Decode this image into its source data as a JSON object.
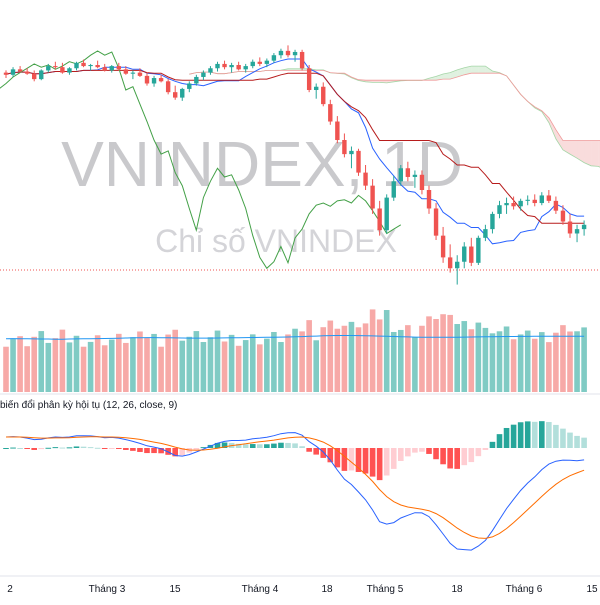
{
  "watermark": {
    "symbol": "VNINDEX, 1D",
    "name": "Chỉ số VNINDEX"
  },
  "macd": {
    "label": "biến đổi phân kỳ hội tụ (12, 26, close, 9)"
  },
  "colors": {
    "up": "#26a69a",
    "down": "#ef5350",
    "up_vol": "#80cbc4",
    "down_vol": "#f7a9a7",
    "conversion": "#2962ff",
    "base": "#b71c1c",
    "lagging": "#43a047",
    "cloud_up": "#a5d6a7",
    "cloud_down": "#ef9a9a",
    "macd_line": "#2962ff",
    "signal_line": "#ff6d00",
    "hist_up_strong": "#26a69a",
    "hist_up_weak": "#b2dfdb",
    "hist_down_strong": "#ff5252",
    "hist_down_weak": "#ffcdd2",
    "volume_ma": "#2196f3",
    "grid": "#f0f3fa"
  },
  "chart_data": {
    "type": "candlestick",
    "title": "VNINDEX, 1D",
    "subtitle": "Chỉ số VNINDEX",
    "x_tick_labels": [
      "2",
      "Tháng 3",
      "15",
      "Tháng 4",
      "18",
      "Tháng 5",
      "18",
      "Tháng 6",
      "15"
    ],
    "grid": false,
    "candles": [
      [
        1170,
        1172,
        1165,
        1168
      ],
      [
        1168,
        1175,
        1166,
        1173
      ],
      [
        1173,
        1176,
        1170,
        1171
      ],
      [
        1171,
        1174,
        1168,
        1169
      ],
      [
        1169,
        1172,
        1162,
        1164
      ],
      [
        1164,
        1173,
        1163,
        1172
      ],
      [
        1172,
        1178,
        1170,
        1176
      ],
      [
        1176,
        1180,
        1173,
        1175
      ],
      [
        1175,
        1179,
        1169,
        1170
      ],
      [
        1170,
        1175,
        1168,
        1174
      ],
      [
        1174,
        1180,
        1172,
        1179
      ],
      [
        1179,
        1182,
        1175,
        1176
      ],
      [
        1176,
        1178,
        1172,
        1177
      ],
      [
        1177,
        1181,
        1174,
        1175
      ],
      [
        1175,
        1178,
        1171,
        1172
      ],
      [
        1172,
        1177,
        1170,
        1176
      ],
      [
        1176,
        1179,
        1172,
        1173
      ],
      [
        1173,
        1176,
        1168,
        1169
      ],
      [
        1169,
        1172,
        1164,
        1170
      ],
      [
        1170,
        1174,
        1166,
        1167
      ],
      [
        1167,
        1170,
        1158,
        1160
      ],
      [
        1160,
        1167,
        1157,
        1165
      ],
      [
        1165,
        1168,
        1161,
        1162
      ],
      [
        1162,
        1164,
        1150,
        1152
      ],
      [
        1152,
        1158,
        1145,
        1147
      ],
      [
        1147,
        1156,
        1144,
        1155
      ],
      [
        1155,
        1162,
        1152,
        1160
      ],
      [
        1160,
        1168,
        1158,
        1166
      ],
      [
        1166,
        1172,
        1163,
        1170
      ],
      [
        1170,
        1176,
        1168,
        1174
      ],
      [
        1174,
        1180,
        1171,
        1178
      ],
      [
        1178,
        1181,
        1173,
        1175
      ],
      [
        1175,
        1179,
        1170,
        1177
      ],
      [
        1177,
        1180,
        1172,
        1173
      ],
      [
        1173,
        1178,
        1170,
        1176
      ],
      [
        1176,
        1182,
        1174,
        1180
      ],
      [
        1180,
        1184,
        1176,
        1178
      ],
      [
        1178,
        1183,
        1175,
        1181
      ],
      [
        1181,
        1188,
        1179,
        1186
      ],
      [
        1186,
        1192,
        1183,
        1190
      ],
      [
        1190,
        1195,
        1184,
        1186
      ],
      [
        1186,
        1191,
        1180,
        1189
      ],
      [
        1189,
        1191,
        1172,
        1174
      ],
      [
        1174,
        1177,
        1152,
        1154
      ],
      [
        1154,
        1160,
        1146,
        1157
      ],
      [
        1157,
        1161,
        1139,
        1141
      ],
      [
        1141,
        1145,
        1122,
        1125
      ],
      [
        1125,
        1130,
        1105,
        1108
      ],
      [
        1108,
        1114,
        1092,
        1095
      ],
      [
        1095,
        1102,
        1082,
        1098
      ],
      [
        1098,
        1100,
        1075,
        1078
      ],
      [
        1078,
        1085,
        1062,
        1066
      ],
      [
        1066,
        1072,
        1040,
        1045
      ],
      [
        1045,
        1052,
        1020,
        1025
      ],
      [
        1025,
        1058,
        1022,
        1055
      ],
      [
        1055,
        1075,
        1052,
        1070
      ],
      [
        1070,
        1085,
        1066,
        1082
      ],
      [
        1082,
        1088,
        1070,
        1074
      ],
      [
        1074,
        1080,
        1064,
        1076
      ],
      [
        1076,
        1080,
        1058,
        1062
      ],
      [
        1062,
        1066,
        1040,
        1045
      ],
      [
        1045,
        1050,
        1016,
        1020
      ],
      [
        1020,
        1028,
        995,
        1000
      ],
      [
        1000,
        1012,
        986,
        990
      ],
      [
        990,
        1002,
        975,
        996
      ],
      [
        996,
        1014,
        990,
        1010
      ],
      [
        1010,
        1018,
        992,
        995
      ],
      [
        995,
        1020,
        993,
        1018
      ],
      [
        1018,
        1030,
        1015,
        1026
      ],
      [
        1026,
        1042,
        1022,
        1040
      ],
      [
        1040,
        1052,
        1036,
        1048
      ],
      [
        1048,
        1055,
        1040,
        1050
      ],
      [
        1050,
        1056,
        1044,
        1047
      ],
      [
        1047,
        1054,
        1043,
        1052
      ],
      [
        1052,
        1057,
        1048,
        1053
      ],
      [
        1053,
        1058,
        1047,
        1050
      ],
      [
        1050,
        1060,
        1048,
        1057
      ],
      [
        1057,
        1062,
        1050,
        1052
      ],
      [
        1052,
        1056,
        1040,
        1043
      ],
      [
        1043,
        1048,
        1030,
        1033
      ],
      [
        1033,
        1040,
        1018,
        1022
      ],
      [
        1022,
        1030,
        1014,
        1026
      ],
      [
        1026,
        1034,
        1020,
        1030
      ]
    ],
    "volume_ma": [
      520,
      522,
      521,
      520,
      519,
      518,
      518,
      517,
      517,
      518,
      519,
      520,
      521,
      522,
      523,
      524,
      526,
      528,
      530,
      531,
      532,
      532,
      531,
      530,
      529,
      528,
      527,
      527,
      527,
      527,
      528,
      529,
      530,
      531,
      532,
      533,
      534,
      535,
      536,
      537,
      538,
      540,
      542,
      545,
      547,
      550,
      552,
      553,
      553,
      553,
      552,
      551,
      549,
      547,
      545,
      543,
      541,
      539,
      537,
      536,
      535,
      535,
      535,
      535,
      536,
      537,
      538,
      539,
      540,
      541,
      542,
      543,
      543,
      544,
      544,
      545,
      545,
      545,
      546,
      546,
      546,
      546,
      546
    ],
    "macd_line": [
      5.0,
      5.2,
      5.0,
      4.5,
      3.8,
      4.0,
      4.6,
      5.0,
      4.8,
      5.0,
      5.6,
      5.6,
      5.5,
      5.2,
      4.7,
      4.8,
      4.5,
      3.8,
      3.0,
      2.1,
      1.0,
      0.4,
      -0.3,
      -1.8,
      -3.4,
      -3.7,
      -3.0,
      -1.8,
      -0.5,
      0.8,
      2.2,
      3.0,
      3.4,
      3.4,
      3.6,
      4.2,
      4.5,
      4.9,
      5.6,
      6.5,
      6.9,
      7.0,
      5.8,
      2.9,
      0.8,
      -1.8,
      -5.5,
      -10.0,
      -14.2,
      -16.6,
      -20.0,
      -23.6,
      -28.2,
      -33.5,
      -34.6,
      -33.9,
      -31.8,
      -30.6,
      -29.4,
      -29.5,
      -31.2,
      -34.9,
      -39.1,
      -43.3,
      -45.9,
      -46.2,
      -46.4,
      -44.6,
      -42.0,
      -37.6,
      -32.5,
      -27.5,
      -23.3,
      -19.3,
      -15.9,
      -13.1,
      -9.8,
      -7.3,
      -6.0,
      -5.5,
      -5.6,
      -5.8,
      -5.4
    ],
    "signal_line": [
      5.0,
      5.0,
      5.0,
      4.9,
      4.7,
      4.5,
      4.5,
      4.6,
      4.6,
      4.7,
      4.9,
      5.0,
      5.1,
      5.1,
      5.0,
      5.0,
      4.9,
      4.7,
      4.3,
      3.9,
      3.3,
      2.7,
      2.1,
      1.3,
      0.4,
      -0.4,
      -0.9,
      -1.0,
      -0.9,
      -0.6,
      -0.1,
      0.5,
      1.1,
      1.5,
      1.9,
      2.4,
      2.8,
      3.2,
      3.6,
      4.1,
      4.6,
      4.9,
      5.0,
      4.6,
      3.8,
      2.7,
      1.0,
      -1.2,
      -3.8,
      -6.4,
      -9.1,
      -12.0,
      -15.2,
      -18.9,
      -22.1,
      -24.4,
      -25.9,
      -26.8,
      -27.3,
      -27.8,
      -28.5,
      -29.8,
      -31.7,
      -34.0,
      -36.4,
      -38.4,
      -40.0,
      -40.9,
      -41.1,
      -40.4,
      -38.8,
      -36.6,
      -33.9,
      -31.0,
      -28.0,
      -25.0,
      -22.0,
      -19.1,
      -16.5,
      -14.3,
      -12.6,
      -11.3,
      -10.1
    ],
    "ichimoku_note": "Ichimoku cloud with conversion, base and lagging lines overlaid on candles",
    "volume_note": "Volume bars colored by candle direction with moving average line"
  }
}
